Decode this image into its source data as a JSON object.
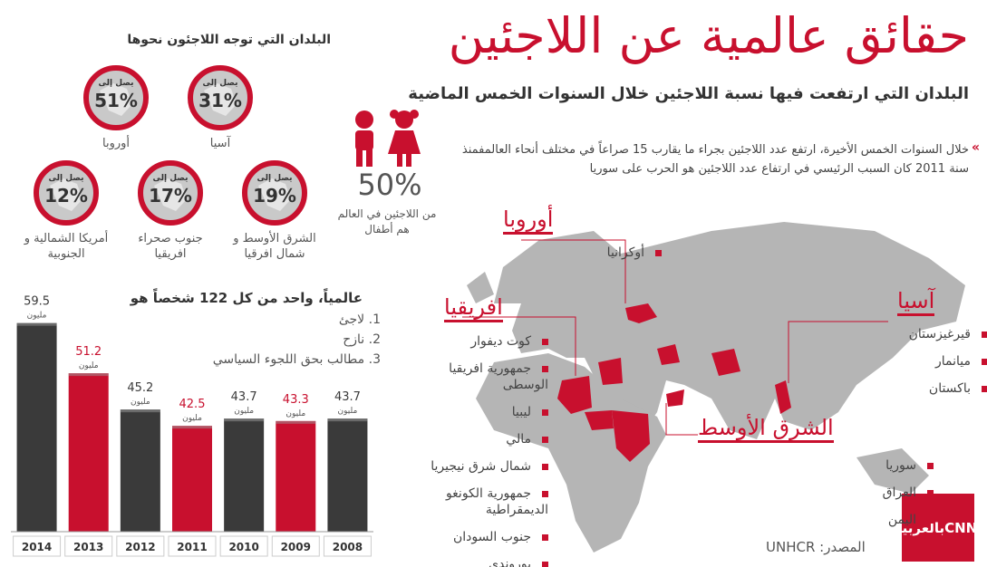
{
  "header": {
    "title": "حقائق عالمية عن اللاجئين",
    "subtitle": "البلدان التي ارتفعت فيها نسبة اللاجئين خلال السنوات الخمس الماضية"
  },
  "intro": "خلال السنوات الخمس الأخيرة، ارتفع عدد اللاجئين بجراء ما يقارب 15 صراعاً في مختلف أنحاء العالمفمنذ سنة 2011 كان السبب الرئيسي في ارتفاع عدد اللاجئين هو الحرب على سوريا",
  "children": {
    "value": "50%",
    "caption": "من اللاجئين في العالم هم أطفال"
  },
  "destinations": {
    "title": "البلدان التي توجه اللاجئون نحوها",
    "items": [
      {
        "prefix": "يصل إلى",
        "value": "51%",
        "label": "أوروبا"
      },
      {
        "prefix": "يصل إلى",
        "value": "31%",
        "label": "آسيا"
      },
      {
        "prefix": "يصل إلى",
        "value": "12%",
        "label": "أمريكا الشمالية و\nالجنوبية"
      },
      {
        "prefix": "يصل إلى",
        "value": "17%",
        "label": "جنوب صحراء\nافريقيا"
      },
      {
        "prefix": "يصل إلى",
        "value": "19%",
        "label": "الشرق الأوسط و\nشمال افرقيا"
      }
    ]
  },
  "regions": [
    {
      "name": "أوروبا",
      "countries": [
        "أوكرانيا"
      ]
    },
    {
      "name": "افريقيا",
      "countries": [
        "كوت ديفوار",
        "جمهورية افريقيا\nالوسطى",
        "ليبيا",
        "مالي",
        "شمال شرق نيجيريا",
        "جمهورية الكونغو\nالديمقراطية",
        "جنوب السودان",
        "بوروندي"
      ]
    },
    {
      "name": "آسيا",
      "countries": [
        "قيرغيزستان",
        "ميانمار",
        "باكستان"
      ]
    },
    {
      "name": "الشرق الأوسط",
      "countries": [
        "سوريا",
        "العراق",
        "اليمن"
      ]
    }
  ],
  "source": "المصدر: UNHCR",
  "logo": "بالعربية",
  "chart_data": {
    "type": "bar",
    "title": "عالمياً، واحد من كل 122 شخصاً هو",
    "notes": [
      "1. لاجئ",
      "2. نازح",
      "3. مطالب بحق اللجوء السياسي"
    ],
    "categories": [
      "2014",
      "2013",
      "2012",
      "2011",
      "2010",
      "2009",
      "2008"
    ],
    "values": [
      59.5,
      51.2,
      45.2,
      42.5,
      43.7,
      43.3,
      43.7
    ],
    "colors": [
      "#3a3a3a",
      "#c8102e",
      "#3a3a3a",
      "#c8102e",
      "#3a3a3a",
      "#c8102e",
      "#3a3a3a"
    ],
    "unit": "مليون",
    "ylim": [
      25,
      62
    ]
  }
}
